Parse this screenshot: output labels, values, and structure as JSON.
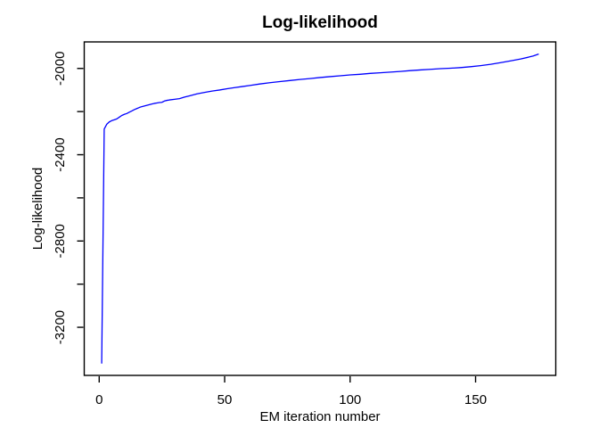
{
  "chart": {
    "background": "#FFFFFF",
    "axis_color": "#000000",
    "text_color": "#000000",
    "line_color": "#0000FF"
  },
  "chart_data": {
    "type": "line",
    "title": "Log-likelihood",
    "xlabel": "EM iteration number",
    "ylabel": "Log-likelihood",
    "xlim": [
      -5.96,
      181.96
    ],
    "ylim": [
      -3423,
      -1877
    ],
    "x_ticks": [
      0,
      50,
      100,
      150
    ],
    "x_tick_labels": [
      "0",
      "50",
      "100",
      "150"
    ],
    "y_ticks": [
      -2000,
      -2200,
      -2400,
      -2600,
      -2800,
      -3000,
      -3200
    ],
    "y_tick_labels": [
      "-2000",
      "",
      "-2400",
      "",
      "-2800",
      "",
      "-3200"
    ],
    "grid": false,
    "legend": null,
    "series": [
      {
        "name": "log-likelihood",
        "color": "#0000FF",
        "points": [
          [
            1,
            -3366
          ],
          [
            2,
            -2281
          ],
          [
            3,
            -2259
          ],
          [
            4,
            -2248
          ],
          [
            5,
            -2242
          ],
          [
            6,
            -2238
          ],
          [
            7,
            -2234
          ],
          [
            8,
            -2226
          ],
          [
            9,
            -2218
          ],
          [
            10,
            -2213
          ],
          [
            11,
            -2209
          ],
          [
            12,
            -2203
          ],
          [
            13,
            -2197
          ],
          [
            14,
            -2191
          ],
          [
            15,
            -2186
          ],
          [
            16,
            -2181
          ],
          [
            17,
            -2177
          ],
          [
            18,
            -2174
          ],
          [
            19,
            -2171
          ],
          [
            20,
            -2168
          ],
          [
            21,
            -2165
          ],
          [
            22,
            -2162
          ],
          [
            23,
            -2160
          ],
          [
            24,
            -2158
          ],
          [
            25,
            -2157
          ],
          [
            26,
            -2151
          ],
          [
            27,
            -2148
          ],
          [
            28,
            -2146
          ],
          [
            30,
            -2143
          ],
          [
            32,
            -2140
          ],
          [
            34,
            -2133
          ],
          [
            36,
            -2127
          ],
          [
            39,
            -2118
          ],
          [
            42,
            -2111
          ],
          [
            45,
            -2105
          ],
          [
            48,
            -2100
          ],
          [
            51,
            -2094
          ],
          [
            54,
            -2089
          ],
          [
            57,
            -2084
          ],
          [
            60,
            -2079
          ],
          [
            64,
            -2072
          ],
          [
            68,
            -2066
          ],
          [
            72,
            -2061
          ],
          [
            76,
            -2056
          ],
          [
            80,
            -2051
          ],
          [
            84,
            -2047
          ],
          [
            88,
            -2042
          ],
          [
            92,
            -2038
          ],
          [
            96,
            -2034
          ],
          [
            100,
            -2030
          ],
          [
            104,
            -2027
          ],
          [
            108,
            -2023
          ],
          [
            112,
            -2020
          ],
          [
            116,
            -2017
          ],
          [
            120,
            -2014
          ],
          [
            124,
            -2010
          ],
          [
            128,
            -2007
          ],
          [
            132,
            -2004
          ],
          [
            136,
            -2001
          ],
          [
            140,
            -1999
          ],
          [
            144,
            -1996
          ],
          [
            148,
            -1992
          ],
          [
            152,
            -1987
          ],
          [
            156,
            -1981
          ],
          [
            160,
            -1973
          ],
          [
            164,
            -1965
          ],
          [
            168,
            -1956
          ],
          [
            171,
            -1948
          ],
          [
            173,
            -1942
          ],
          [
            174,
            -1938
          ],
          [
            175,
            -1934
          ]
        ]
      }
    ]
  }
}
